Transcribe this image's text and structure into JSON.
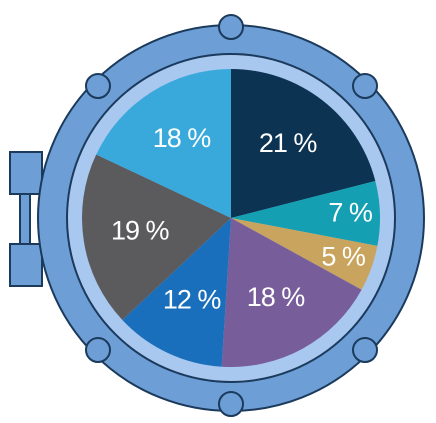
{
  "chart_data": {
    "type": "pie",
    "values": [
      21,
      7,
      5,
      18,
      12,
      19,
      18
    ],
    "value_labels": [
      "21 %",
      "7 %",
      "5 %",
      "18 %",
      "12 %",
      "19 %",
      "18 %"
    ],
    "colors": [
      "#0c3352",
      "#14a0b2",
      "#c9a45e",
      "#775e9b",
      "#1a6fbc",
      "#5b5b5d",
      "#39a9dc"
    ]
  }
}
